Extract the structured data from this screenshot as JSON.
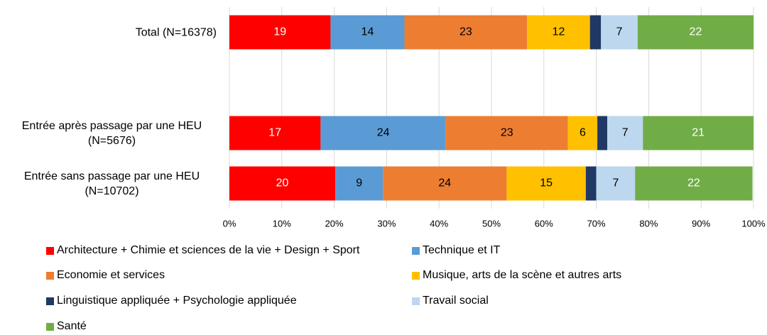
{
  "chart_data": {
    "type": "stacked_barh",
    "categories": [
      "Total (N=16378)",
      null,
      "Entrée après passage par une HEU (N=5676)",
      "Entrée sans passage par une HEU (N=10702)"
    ],
    "series": [
      {
        "name": "Architecture + Chimie et sciences de la vie + Design + Sport",
        "color": "#ff0000",
        "label_color": "#ffffff",
        "values": [
          19.3,
          null,
          17.4,
          20.2
        ],
        "value_labels": [
          "19",
          null,
          "17",
          "20"
        ]
      },
      {
        "name": "Technique et IT",
        "color": "#5b9bd5",
        "label_color": "#000000",
        "values": [
          14.1,
          null,
          23.9,
          9.1
        ],
        "value_labels": [
          "14",
          null,
          "24",
          "9"
        ]
      },
      {
        "name": "Economie et services",
        "color": "#ed7d31",
        "label_color": "#000000",
        "values": [
          23.4,
          null,
          23.3,
          23.6
        ],
        "value_labels": [
          "23",
          null,
          "23",
          "24"
        ]
      },
      {
        "name": "Musique, arts de la scène et autres arts",
        "color": "#ffc000",
        "label_color": "#000000",
        "values": [
          12.0,
          null,
          5.6,
          15.1
        ],
        "value_labels": [
          "12",
          null,
          "6",
          "15"
        ]
      },
      {
        "name": "Linguistique appliquée + Psychologie appliquée",
        "color": "#1f3864",
        "label_color": "#ffffff",
        "values": [
          2.1,
          null,
          1.9,
          2.0
        ]
      },
      {
        "name": "Travail social",
        "color": "#bdd7ee",
        "label_color": "#000000",
        "values": [
          7.0,
          null,
          6.8,
          7.4
        ],
        "value_labels": [
          "7",
          null,
          "7",
          "7"
        ]
      },
      {
        "name": "Santé",
        "color": "#70ad47",
        "label_color": "#ffffff",
        "values": [
          22.1,
          null,
          21.1,
          22.4
        ],
        "value_labels": [
          "22",
          null,
          "21",
          "22"
        ]
      }
    ],
    "xlim": [
      0,
      100
    ],
    "xticks": [
      {
        "value": 0,
        "label": "0%"
      },
      {
        "value": 10,
        "label": "10%"
      },
      {
        "value": 20,
        "label": "20%"
      },
      {
        "value": 30,
        "label": "30%"
      },
      {
        "value": 40,
        "label": "40%"
      },
      {
        "value": 50,
        "label": "50%"
      },
      {
        "value": 60,
        "label": "60%"
      },
      {
        "value": 70,
        "label": "70%"
      },
      {
        "value": 80,
        "label": "80%"
      },
      {
        "value": 90,
        "label": "90%"
      },
      {
        "value": 100,
        "label": "100%"
      }
    ],
    "grid": true,
    "legend": "bottom"
  }
}
